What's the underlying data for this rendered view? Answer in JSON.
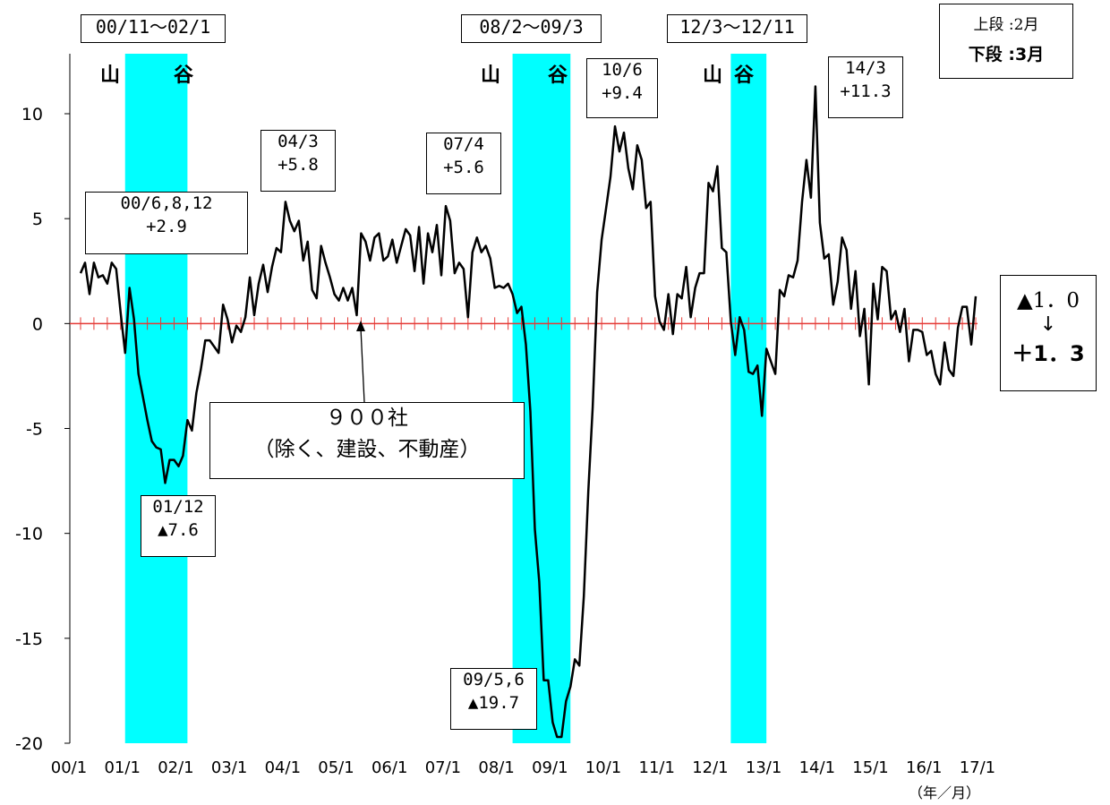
{
  "chart_data": {
    "type": "line",
    "xlabel": "",
    "unit_note": "（年／月）",
    "ylabel": "",
    "ylim": [
      -20,
      13
    ],
    "yticks": [
      10,
      5,
      0,
      -5,
      -10,
      -15,
      -20
    ],
    "xticks": [
      "00/1",
      "01/1",
      "02/1",
      "03/1",
      "04/1",
      "05/1",
      "06/1",
      "07/1",
      "08/1",
      "09/1",
      "10/1",
      "11/1",
      "12/1",
      "13/1",
      "14/1",
      "15/1",
      "16/1",
      "17/1"
    ],
    "x_start": "2000/1",
    "series": [
      {
        "name": "",
        "color": "#000000",
        "values": [
          2.4,
          2.9,
          1.4,
          2.9,
          2.2,
          2.3,
          1.9,
          2.9,
          2.6,
          0.5,
          -1.4,
          1.7,
          0.2,
          -2.4,
          -3.5,
          -4.6,
          -5.6,
          -5.9,
          -6.0,
          -7.6,
          -6.5,
          -6.5,
          -6.8,
          -6.3,
          -4.6,
          -5.1,
          -3.3,
          -2.2,
          -0.8,
          -0.8,
          -1.1,
          -1.4,
          0.9,
          0.2,
          -0.9,
          -0.1,
          -0.4,
          0.3,
          2.2,
          0.4,
          1.9,
          2.8,
          1.5,
          2.7,
          3.6,
          3.4,
          5.8,
          4.9,
          4.4,
          4.9,
          3.0,
          3.9,
          1.6,
          1.2,
          3.7,
          2.9,
          2.2,
          1.4,
          1.1,
          1.7,
          1.1,
          1.7,
          0.4,
          4.3,
          3.9,
          3.0,
          4.1,
          4.3,
          3.0,
          3.2,
          4.0,
          2.9,
          3.7,
          4.5,
          4.2,
          2.5,
          4.6,
          1.9,
          4.3,
          3.4,
          4.7,
          2.3,
          5.6,
          4.9,
          2.4,
          2.9,
          2.6,
          0.3,
          3.4,
          4.1,
          3.4,
          3.7,
          3.1,
          1.7,
          1.8,
          1.7,
          1.9,
          1.4,
          0.5,
          0.8,
          -1.0,
          -4.2,
          -9.8,
          -12.3,
          -17.0,
          -17.0,
          -19.0,
          -19.7,
          -19.7,
          -18.0,
          -17.3,
          -16.0,
          -16.3,
          -13.0,
          -8.0,
          -4.0,
          1.5,
          4.0,
          5.5,
          7.0,
          9.4,
          8.2,
          9.1,
          7.4,
          6.4,
          8.5,
          7.8,
          5.5,
          5.8,
          1.3,
          0.1,
          -0.3,
          1.4,
          -0.5,
          1.4,
          1.2,
          2.7,
          0.3,
          1.7,
          2.4,
          2.4,
          6.7,
          6.3,
          7.5,
          3.6,
          3.4,
          0.1,
          -1.5,
          0.3,
          -0.3,
          -2.3,
          -2.4,
          -2.0,
          -4.4,
          -1.2,
          -1.8,
          -2.4,
          1.6,
          1.3,
          2.3,
          2.2,
          3.0,
          5.8,
          7.8,
          6.0,
          11.3,
          4.8,
          3.1,
          3.3,
          0.9,
          2.0,
          4.1,
          3.5,
          0.7,
          2.5,
          -0.6,
          0.7,
          -2.9,
          1.9,
          0.2,
          2.7,
          2.5,
          0.2,
          0.6,
          -0.4,
          0.7,
          -1.8,
          -0.3,
          -0.3,
          -0.4,
          -1.5,
          -1.3,
          -2.4,
          -2.9,
          -0.9,
          -2.2,
          -2.5,
          -0.2,
          0.8,
          0.8,
          -1.0,
          1.3
        ]
      }
    ],
    "recession_bands": [
      {
        "label": "00/11～02/1",
        "peak": "山",
        "trough": "谷",
        "start": "2000/11",
        "end": "2002/1"
      },
      {
        "label": "08/2～09/3",
        "peak": "山",
        "trough": "谷",
        "start": "2008/2",
        "end": "2009/3"
      },
      {
        "label": "12/3～12/11",
        "peak": "山",
        "trough": "谷",
        "start": "2012/3",
        "end": "2012/11"
      }
    ],
    "band_color": "#00ffff",
    "zero_line_color": "#e53935",
    "annotations": [
      {
        "text": "00/6,8,12\n+2.9"
      },
      {
        "text": "01/12\n▲7.6"
      },
      {
        "text": "04/3\n+5.8"
      },
      {
        "text": "07/4\n+5.6"
      },
      {
        "text": "09/5,6\n▲19.7"
      },
      {
        "text": "10/6\n+9.4"
      },
      {
        "text": "14/3\n+11.3"
      },
      {
        "text": "９００社\n（除く、建設、不動産）"
      }
    ],
    "legend": {
      "top": "上段 :2月",
      "bottom": "下段 :3月"
    },
    "change_box": {
      "from": "▲1．0",
      "arrow": "↓",
      "to": "＋1．3"
    }
  }
}
